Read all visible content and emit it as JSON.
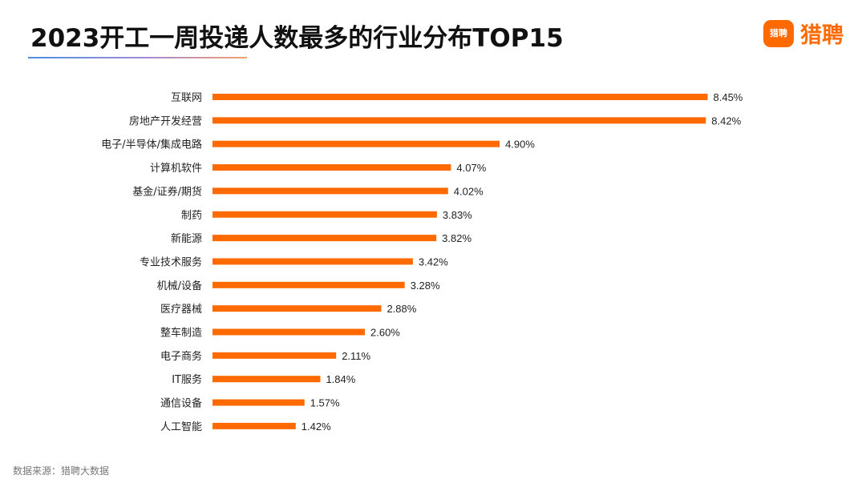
{
  "title": "2023开工一周投递人数最多的行业分布TOP15",
  "logo": {
    "mark_text": "猎聘",
    "text": "猎聘"
  },
  "source": "数据来源：猎聘大数据",
  "colors": {
    "bar": "#ff6a00",
    "brand": "#ff6a00"
  },
  "chart_data": {
    "type": "bar",
    "orientation": "horizontal",
    "categories": [
      "互联网",
      "房地产开发经营",
      "电子/半导体/集成电路",
      "计算机软件",
      "基金/证券/期货",
      "制药",
      "新能源",
      "专业技术服务",
      "机械/设备",
      "医疗器械",
      "整车制造",
      "电子商务",
      "IT服务",
      "通信设备",
      "人工智能"
    ],
    "values": [
      8.45,
      8.42,
      4.9,
      4.07,
      4.02,
      3.83,
      3.82,
      3.42,
      3.28,
      2.88,
      2.6,
      2.11,
      1.84,
      1.57,
      1.42
    ],
    "value_labels": [
      "8.45%",
      "8.42%",
      "4.90%",
      "4.07%",
      "4.02%",
      "3.83%",
      "3.82%",
      "3.42%",
      "3.28%",
      "2.88%",
      "2.60%",
      "2.11%",
      "1.84%",
      "1.57%",
      "1.42%"
    ],
    "unit": "%",
    "xlim": [
      0,
      8.45
    ],
    "grid": false,
    "legend": "none"
  }
}
